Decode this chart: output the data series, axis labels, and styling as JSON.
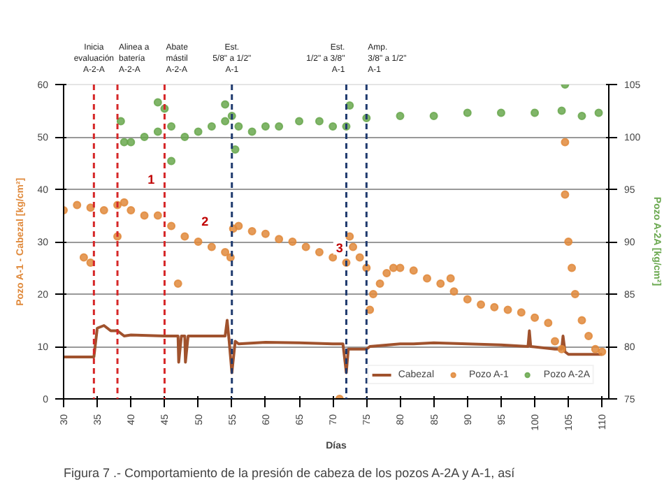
{
  "chart_data": {
    "type": "scatter",
    "xlabel": "Días",
    "ylabel": "Pozo A-1 - Cabezal [kg/cm²]",
    "y2label": "Pozo A-2A [kg/cm²]",
    "xlim": [
      30,
      111
    ],
    "ylim": [
      0,
      60
    ],
    "y2lim": [
      75,
      105
    ],
    "xticks": [
      30,
      35,
      40,
      45,
      50,
      55,
      60,
      65,
      70,
      75,
      80,
      85,
      90,
      95,
      100,
      105,
      110
    ],
    "yticks": [
      0,
      10,
      20,
      30,
      40,
      50,
      60
    ],
    "y2ticks": [
      75,
      80,
      85,
      90,
      95,
      100,
      105
    ],
    "grid": "y",
    "legend": "bottom right",
    "series": [
      {
        "name": "Cabezal",
        "type": "line",
        "color": "#a0522d",
        "x": [
          30,
          33,
          34.5,
          35,
          36,
          37,
          38,
          39,
          40,
          45,
          46,
          47,
          47.1,
          47.5,
          48,
          48.1,
          48.5,
          50,
          54,
          54.3,
          54.6,
          55,
          55.5,
          56,
          60,
          65,
          70,
          71.5,
          72,
          72.3,
          75,
          75.5,
          80,
          82,
          85,
          90,
          95,
          99,
          99.2,
          99.4,
          103,
          104,
          104.2,
          104.5,
          105,
          110
        ],
        "values": [
          8,
          8,
          8,
          13.5,
          14,
          13,
          13,
          12,
          12.2,
          12,
          12,
          12,
          7,
          12,
          12,
          7,
          12,
          12,
          12,
          15,
          11,
          5,
          11,
          10.5,
          10.8,
          10.7,
          10.5,
          10.5,
          5,
          9.5,
          9.5,
          10,
          10.5,
          10.5,
          10.7,
          10.5,
          10.3,
          10,
          13,
          10,
          9.5,
          9.5,
          12,
          9,
          8.5,
          8.5
        ]
      },
      {
        "name": "Pozo A-1",
        "marker": "circle",
        "color": "#e08a3c",
        "x": [
          30,
          32,
          33,
          34,
          34,
          36,
          38,
          38,
          39,
          40,
          42,
          44,
          46,
          47,
          48,
          50,
          52,
          54,
          54.8,
          55.2,
          56,
          58,
          60,
          62,
          64,
          66,
          68,
          70,
          71,
          72,
          72.5,
          73,
          74,
          75,
          75.5,
          76,
          77,
          78,
          79,
          80,
          82,
          84,
          86,
          87.5,
          88,
          90,
          92,
          94,
          96,
          98,
          100,
          102,
          103,
          104,
          104.5,
          104.5,
          105,
          105.5,
          106,
          107,
          108,
          109,
          110
        ],
        "values": [
          36,
          37,
          27,
          36.5,
          26,
          36,
          37,
          31,
          37.5,
          36,
          35,
          35,
          33,
          22,
          31,
          30,
          29,
          28,
          27,
          32.5,
          33,
          32,
          31.5,
          30.5,
          30,
          29,
          28,
          27,
          0,
          26,
          31,
          29,
          27,
          25,
          17,
          20,
          22,
          24,
          25,
          25,
          24.5,
          23,
          22,
          23,
          20.5,
          19,
          18,
          17.5,
          17,
          16.5,
          15.5,
          14.5,
          11,
          9.5,
          49,
          39,
          30,
          25,
          20,
          15,
          12,
          9.5,
          9
        ]
      },
      {
        "name": "Pozo A-2A",
        "marker": "circle",
        "axis": "y2",
        "color": "#6aa84f",
        "x": [
          38.5,
          39,
          40,
          42,
          44,
          44,
          45,
          46,
          46,
          48,
          50,
          52,
          54,
          54,
          55,
          55.5,
          56,
          58,
          60,
          62,
          65,
          68,
          70,
          72,
          72.5,
          75,
          80,
          85,
          90,
          95,
          100,
          104,
          104.5,
          107,
          109.5
        ],
        "values": [
          101.5,
          99.5,
          99.5,
          100,
          100.5,
          103.3,
          102.7,
          101,
          97.7,
          100,
          100.5,
          101,
          101.5,
          103.1,
          102,
          98.8,
          101,
          100.5,
          101,
          101,
          101.5,
          101.5,
          101,
          101,
          103,
          101.8,
          102,
          102,
          102.3,
          102.3,
          102.3,
          102.5,
          105,
          102,
          102.3
        ]
      }
    ],
    "ref_lines": [
      {
        "axis": "x",
        "value": 34.5,
        "label": "Inicia\nevaluación\nA-2-A",
        "color": "#d62728",
        "line_style": "dashed"
      },
      {
        "axis": "x",
        "value": 38,
        "label": "Alinea a\nbatería\nA-2-A",
        "color": "#d62728",
        "line_style": "dashed"
      },
      {
        "axis": "x",
        "value": 45,
        "label": "Abate\nmástil\nA-2-A",
        "color": "#d62728",
        "line_style": "dashed"
      },
      {
        "axis": "x",
        "value": 55,
        "label": "Est.\n5/8\" a 1/2\"\nA-1",
        "color": "#1f3a6e",
        "line_style": "dashed"
      },
      {
        "axis": "x",
        "value": 72,
        "label": "Est.\n1/2\" a 3/8\"\nA-1",
        "color": "#1f3a6e",
        "line_style": "dashed"
      },
      {
        "axis": "x",
        "value": 75,
        "label": "Amp.\n3/8\" a 1/2\"\nA-1",
        "color": "#1f3a6e",
        "line_style": "dashed"
      }
    ],
    "annotations": [
      {
        "text": "1",
        "x": 43,
        "y": 42
      },
      {
        "text": "2",
        "x": 51,
        "y": 34
      },
      {
        "text": "3",
        "x": 71,
        "y": 29
      },
      "Figura 7 .- Comportamiento de la presión de cabeza de los pozos A-2A y A-1, así"
    ]
  }
}
